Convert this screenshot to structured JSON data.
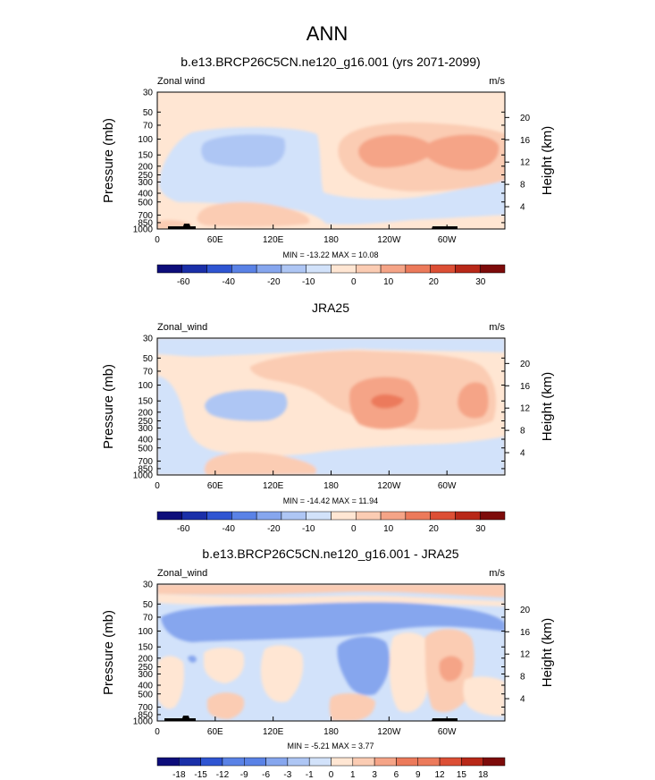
{
  "figure_title": "ANN",
  "colors": {
    "cb_scale": [
      "#0d0d7a",
      "#1a2fa8",
      "#2f55d2",
      "#5a82e6",
      "#86a6ee",
      "#aec6f4",
      "#d2e2fa",
      "#ffe6d3",
      "#fbccb3",
      "#f5a487",
      "#ec7a5b",
      "#dc4f35",
      "#b82818",
      "#7d0b0a"
    ]
  },
  "panels": [
    {
      "title": "b.e13.BRCP26C5CN.ne120_g16.001 (yrs 2071-2099)",
      "left_label": "Zonal wind",
      "units": "m/s",
      "y_label": "Pressure (mb)",
      "y2_label": "Height (km)",
      "stats": "MIN = -13.22  MAX = 10.08",
      "colorbar_labels": [
        "-60",
        "-40",
        "-20",
        "-10",
        "0",
        "10",
        "20",
        "30"
      ],
      "has_topography": true
    },
    {
      "title": "JRA25",
      "left_label": "Zonal_wind",
      "units": "m/s",
      "y_label": "Pressure (mb)",
      "y2_label": "Height (km)",
      "stats": "MIN = -14.42  MAX = 11.94",
      "colorbar_labels": [
        "-60",
        "-40",
        "-20",
        "-10",
        "0",
        "10",
        "20",
        "30"
      ],
      "has_topography": false
    },
    {
      "title": "b.e13.BRCP26C5CN.ne120_g16.001 - JRA25",
      "left_label": "Zonal_wind",
      "units": "m/s",
      "y_label": "Pressure (mb)",
      "y2_label": "Height (km)",
      "stats": "MIN = -5.21  MAX =  3.77",
      "colorbar_labels": [
        "-18",
        "-15",
        "-12",
        "-9",
        "-6",
        "-3",
        "-1",
        "0",
        "1",
        "3",
        "6",
        "9",
        "12",
        "15",
        "18"
      ],
      "has_topography": true
    }
  ],
  "chart_data": [
    {
      "type": "heatmap",
      "title": "b.e13.BRCP26C5CN.ne120_g16.001 (yrs 2071-2099)",
      "xlabel": "",
      "ylabel": "Pressure (mb)",
      "y2label": "Height (km)",
      "x_ticks": [
        "0",
        "60E",
        "120E",
        "180",
        "120W",
        "60W"
      ],
      "x_tick_lon": [
        0,
        60,
        120,
        180,
        240,
        300
      ],
      "xlim": [
        0,
        360
      ],
      "y_ticks": [
        30,
        50,
        70,
        100,
        150,
        200,
        250,
        300,
        400,
        500,
        700,
        850,
        1000
      ],
      "ylim": [
        1000,
        30
      ],
      "y_scale": "log",
      "y2_ticks": [
        4,
        8,
        12,
        16,
        20
      ],
      "levels": [
        -60,
        -40,
        -20,
        -10,
        0,
        10,
        20,
        30
      ],
      "grid": false
    },
    {
      "type": "heatmap",
      "title": "JRA25",
      "xlabel": "",
      "ylabel": "Pressure (mb)",
      "y2label": "Height (km)",
      "x_ticks": [
        "0",
        "60E",
        "120E",
        "180",
        "120W",
        "60W"
      ],
      "x_tick_lon": [
        0,
        60,
        120,
        180,
        240,
        300
      ],
      "xlim": [
        0,
        360
      ],
      "y_ticks": [
        30,
        50,
        70,
        100,
        150,
        200,
        250,
        300,
        400,
        500,
        700,
        850,
        1000
      ],
      "ylim": [
        1000,
        30
      ],
      "y_scale": "log",
      "y2_ticks": [
        4,
        8,
        12,
        16,
        20
      ],
      "levels": [
        -60,
        -40,
        -20,
        -10,
        0,
        10,
        20,
        30
      ],
      "grid": false
    },
    {
      "type": "heatmap",
      "title": "b.e13.BRCP26C5CN.ne120_g16.001 - JRA25",
      "xlabel": "",
      "ylabel": "Pressure (mb)",
      "y2label": "Height (km)",
      "x_ticks": [
        "0",
        "60E",
        "120E",
        "180",
        "120W",
        "60W"
      ],
      "x_tick_lon": [
        0,
        60,
        120,
        180,
        240,
        300
      ],
      "xlim": [
        0,
        360
      ],
      "y_ticks": [
        30,
        50,
        70,
        100,
        150,
        200,
        250,
        300,
        400,
        500,
        700,
        850,
        1000
      ],
      "ylim": [
        1000,
        30
      ],
      "y_scale": "log",
      "y2_ticks": [
        4,
        8,
        12,
        16,
        20
      ],
      "levels": [
        -18,
        -15,
        -12,
        -9,
        -6,
        -3,
        -1,
        0,
        1,
        3,
        6,
        9,
        12,
        15,
        18
      ],
      "grid": false
    }
  ]
}
